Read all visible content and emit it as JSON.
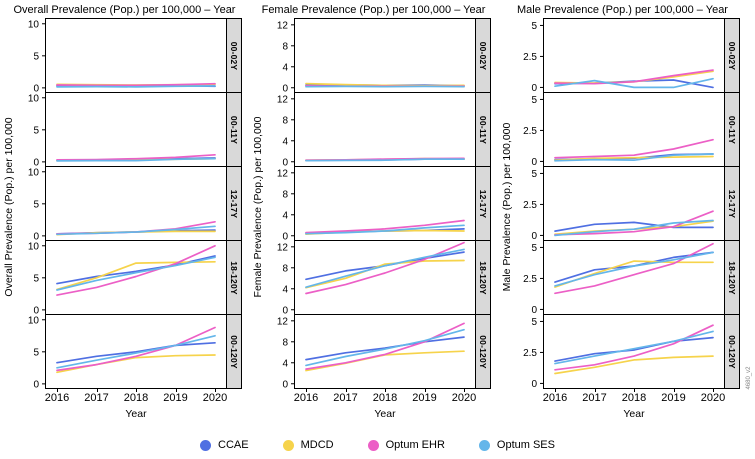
{
  "page": {
    "watermark": "4680_v2"
  },
  "legend": {
    "items": [
      {
        "label": "CCAE",
        "color": "#4f6fe2"
      },
      {
        "label": "MDCD",
        "color": "#f6d34b"
      },
      {
        "label": "Optum EHR",
        "color": "#ec5fc6"
      },
      {
        "label": "Optum SES",
        "color": "#64b6ea"
      }
    ]
  },
  "strip_bg": "#d9d9d9",
  "chart_data": [
    {
      "type": "line",
      "title": "Overall Prevalence (Pop.) per 100,000 – Year",
      "ylabel": "Overall Prevalence (Pop.) per 100,000",
      "xlabel": "Year",
      "x": [
        2016,
        2017,
        2018,
        2019,
        2020
      ],
      "yticks": [
        0,
        5,
        10
      ],
      "ylim": [
        -0.8,
        10.9
      ],
      "grid": false,
      "legend_position": "bottom",
      "facets": [
        {
          "label": "00-02Y",
          "series": [
            {
              "name": "CCAE",
              "values": [
                0.3,
                0.35,
                0.3,
                0.35,
                0.25
              ]
            },
            {
              "name": "MDCD",
              "values": [
                0.55,
                0.5,
                0.45,
                0.5,
                0.55
              ]
            },
            {
              "name": "Optum EHR",
              "values": [
                0.45,
                0.4,
                0.4,
                0.5,
                0.65
              ]
            },
            {
              "name": "Optum SES",
              "values": [
                0.15,
                0.2,
                0.15,
                0.25,
                0.3
              ]
            }
          ]
        },
        {
          "label": "00-11Y",
          "series": [
            {
              "name": "CCAE",
              "values": [
                0.25,
                0.3,
                0.35,
                0.5,
                0.6
              ]
            },
            {
              "name": "MDCD",
              "values": [
                0.2,
                0.25,
                0.3,
                0.4,
                0.5
              ]
            },
            {
              "name": "Optum EHR",
              "values": [
                0.3,
                0.35,
                0.5,
                0.7,
                1.1
              ]
            },
            {
              "name": "Optum SES",
              "values": [
                0.15,
                0.2,
                0.2,
                0.4,
                0.5
              ]
            }
          ]
        },
        {
          "label": "12-17Y",
          "series": [
            {
              "name": "CCAE",
              "values": [
                0.3,
                0.5,
                0.6,
                0.8,
                0.9
              ]
            },
            {
              "name": "MDCD",
              "values": [
                0.2,
                0.5,
                0.6,
                0.7,
                0.7
              ]
            },
            {
              "name": "Optum EHR",
              "values": [
                0.3,
                0.4,
                0.6,
                1.1,
                2.2
              ]
            },
            {
              "name": "Optum SES",
              "values": [
                0.25,
                0.4,
                0.6,
                1.0,
                1.5
              ]
            }
          ]
        },
        {
          "label": "18-120Y",
          "series": [
            {
              "name": "CCAE",
              "values": [
                4.1,
                5.2,
                6.0,
                7.0,
                8.4
              ]
            },
            {
              "name": "MDCD",
              "values": [
                3.2,
                5.0,
                7.3,
                7.4,
                7.5
              ]
            },
            {
              "name": "Optum EHR",
              "values": [
                2.3,
                3.5,
                5.2,
                7.2,
                10.0
              ]
            },
            {
              "name": "Optum SES",
              "values": [
                3.1,
                4.6,
                5.8,
                6.9,
                8.2
              ]
            }
          ]
        },
        {
          "label": "00-120Y",
          "series": [
            {
              "name": "CCAE",
              "values": [
                3.3,
                4.3,
                5.0,
                6.0,
                6.4
              ]
            },
            {
              "name": "MDCD",
              "values": [
                1.8,
                3.0,
                4.1,
                4.4,
                4.5
              ]
            },
            {
              "name": "Optum EHR",
              "values": [
                2.1,
                3.0,
                4.3,
                6.0,
                8.8
              ]
            },
            {
              "name": "Optum SES",
              "values": [
                2.5,
                3.7,
                4.8,
                6.0,
                7.5
              ]
            }
          ]
        }
      ]
    },
    {
      "type": "line",
      "title": "Female Prevalence (Pop.) per 100,000 – Year",
      "ylabel": "Female Prevalence (Pop.) per 100,000",
      "xlabel": "Year",
      "x": [
        2016,
        2017,
        2018,
        2019,
        2020
      ],
      "yticks": [
        0,
        4,
        8,
        12
      ],
      "ylim": [
        -1.0,
        13.3
      ],
      "grid": false,
      "legend_position": "bottom",
      "facets": [
        {
          "label": "00-02Y",
          "series": [
            {
              "name": "CCAE",
              "values": [
                0.5,
                0.55,
                0.45,
                0.5,
                0.4
              ]
            },
            {
              "name": "MDCD",
              "values": [
                0.8,
                0.6,
                0.45,
                0.4,
                0.45
              ]
            },
            {
              "name": "Optum EHR",
              "values": [
                0.35,
                0.3,
                0.3,
                0.3,
                0.3
              ]
            },
            {
              "name": "Optum SES",
              "values": [
                0.2,
                0.25,
                0.2,
                0.25,
                0.2
              ]
            }
          ]
        },
        {
          "label": "00-11Y",
          "series": [
            {
              "name": "CCAE",
              "values": [
                0.25,
                0.3,
                0.35,
                0.5,
                0.5
              ]
            },
            {
              "name": "MDCD",
              "values": [
                0.3,
                0.35,
                0.45,
                0.6,
                0.5
              ]
            },
            {
              "name": "Optum EHR",
              "values": [
                0.3,
                0.35,
                0.5,
                0.6,
                0.65
              ]
            },
            {
              "name": "Optum SES",
              "values": [
                0.2,
                0.25,
                0.3,
                0.5,
                0.5
              ]
            }
          ]
        },
        {
          "label": "12-17Y",
          "series": [
            {
              "name": "CCAE",
              "values": [
                0.5,
                0.7,
                0.9,
                1.0,
                1.3
              ]
            },
            {
              "name": "MDCD",
              "values": [
                0.3,
                0.7,
                0.9,
                1.0,
                0.9
              ]
            },
            {
              "name": "Optum EHR",
              "values": [
                0.6,
                0.9,
                1.3,
                2.0,
                2.9
              ]
            },
            {
              "name": "Optum SES",
              "values": [
                0.4,
                0.6,
                0.9,
                1.5,
                2.0
              ]
            }
          ]
        },
        {
          "label": "18-120Y",
          "series": [
            {
              "name": "CCAE",
              "values": [
                5.8,
                7.4,
                8.4,
                9.8,
                11.0
              ]
            },
            {
              "name": "MDCD",
              "values": [
                4.2,
                6.0,
                8.7,
                9.3,
                9.4
              ]
            },
            {
              "name": "Optum EHR",
              "values": [
                3.1,
                4.8,
                7.0,
                9.6,
                12.8
              ]
            },
            {
              "name": "Optum SES",
              "values": [
                4.3,
                6.4,
                8.4,
                10.0,
                11.5
              ]
            }
          ]
        },
        {
          "label": "00-120Y",
          "series": [
            {
              "name": "CCAE",
              "values": [
                4.6,
                5.9,
                6.8,
                8.0,
                8.9
              ]
            },
            {
              "name": "MDCD",
              "values": [
                2.5,
                3.9,
                5.5,
                5.9,
                6.2
              ]
            },
            {
              "name": "Optum EHR",
              "values": [
                2.8,
                4.0,
                5.6,
                8.0,
                11.5
              ]
            },
            {
              "name": "Optum SES",
              "values": [
                3.5,
                5.2,
                6.6,
                8.2,
                10.3
              ]
            }
          ]
        }
      ]
    },
    {
      "type": "line",
      "title": "Male Prevalence (Pop.) per 100,000 – Year",
      "ylabel": "Male Prevalence (Pop.) per 100,000",
      "xlabel": "Year",
      "x": [
        2016,
        2017,
        2018,
        2019,
        2020
      ],
      "yticks": [
        0,
        2.5,
        5
      ],
      "ylim": [
        -0.45,
        5.6
      ],
      "grid": false,
      "legend_position": "bottom",
      "facets": [
        {
          "label": "00-02Y",
          "series": [
            {
              "name": "CCAE",
              "values": [
                0.3,
                0.35,
                0.5,
                0.6,
                0.0
              ]
            },
            {
              "name": "MDCD",
              "values": [
                0.4,
                0.35,
                0.45,
                0.85,
                1.3
              ]
            },
            {
              "name": "Optum EHR",
              "values": [
                0.35,
                0.3,
                0.45,
                0.95,
                1.4
              ]
            },
            {
              "name": "Optum SES",
              "values": [
                0.1,
                0.55,
                0.0,
                0.0,
                0.7
              ]
            }
          ]
        },
        {
          "label": "00-11Y",
          "series": [
            {
              "name": "CCAE",
              "values": [
                0.15,
                0.2,
                0.25,
                0.55,
                0.6
              ]
            },
            {
              "name": "MDCD",
              "values": [
                0.1,
                0.25,
                0.3,
                0.35,
                0.4
              ]
            },
            {
              "name": "Optum EHR",
              "values": [
                0.3,
                0.4,
                0.5,
                1.0,
                1.75
              ]
            },
            {
              "name": "Optum SES",
              "values": [
                0.05,
                0.15,
                0.1,
                0.5,
                0.6
              ]
            }
          ]
        },
        {
          "label": "12-17Y",
          "series": [
            {
              "name": "CCAE",
              "values": [
                0.35,
                0.9,
                1.05,
                0.65,
                0.65
              ]
            },
            {
              "name": "MDCD",
              "values": [
                0.1,
                0.35,
                0.5,
                0.7,
                1.15
              ]
            },
            {
              "name": "Optum EHR",
              "values": [
                0.05,
                0.15,
                0.3,
                0.7,
                1.95
              ]
            },
            {
              "name": "Optum SES",
              "values": [
                0.0,
                0.3,
                0.5,
                1.0,
                1.2
              ]
            }
          ]
        },
        {
          "label": "18-120Y",
          "series": [
            {
              "name": "CCAE",
              "values": [
                2.2,
                3.2,
                3.5,
                4.2,
                4.6
              ]
            },
            {
              "name": "MDCD",
              "values": [
                1.8,
                2.9,
                3.9,
                3.8,
                3.8
              ]
            },
            {
              "name": "Optum EHR",
              "values": [
                1.3,
                1.9,
                2.8,
                3.7,
                5.3
              ]
            },
            {
              "name": "Optum SES",
              "values": [
                1.9,
                2.8,
                3.5,
                4.0,
                4.6
              ]
            }
          ]
        },
        {
          "label": "00-120Y",
          "series": [
            {
              "name": "CCAE",
              "values": [
                1.8,
                2.4,
                2.7,
                3.4,
                3.7
              ]
            },
            {
              "name": "MDCD",
              "values": [
                0.8,
                1.3,
                1.9,
                2.1,
                2.2
              ]
            },
            {
              "name": "Optum EHR",
              "values": [
                1.1,
                1.5,
                2.2,
                3.2,
                4.7
              ]
            },
            {
              "name": "Optum SES",
              "values": [
                1.6,
                2.2,
                2.8,
                3.4,
                4.2
              ]
            }
          ]
        }
      ]
    }
  ]
}
